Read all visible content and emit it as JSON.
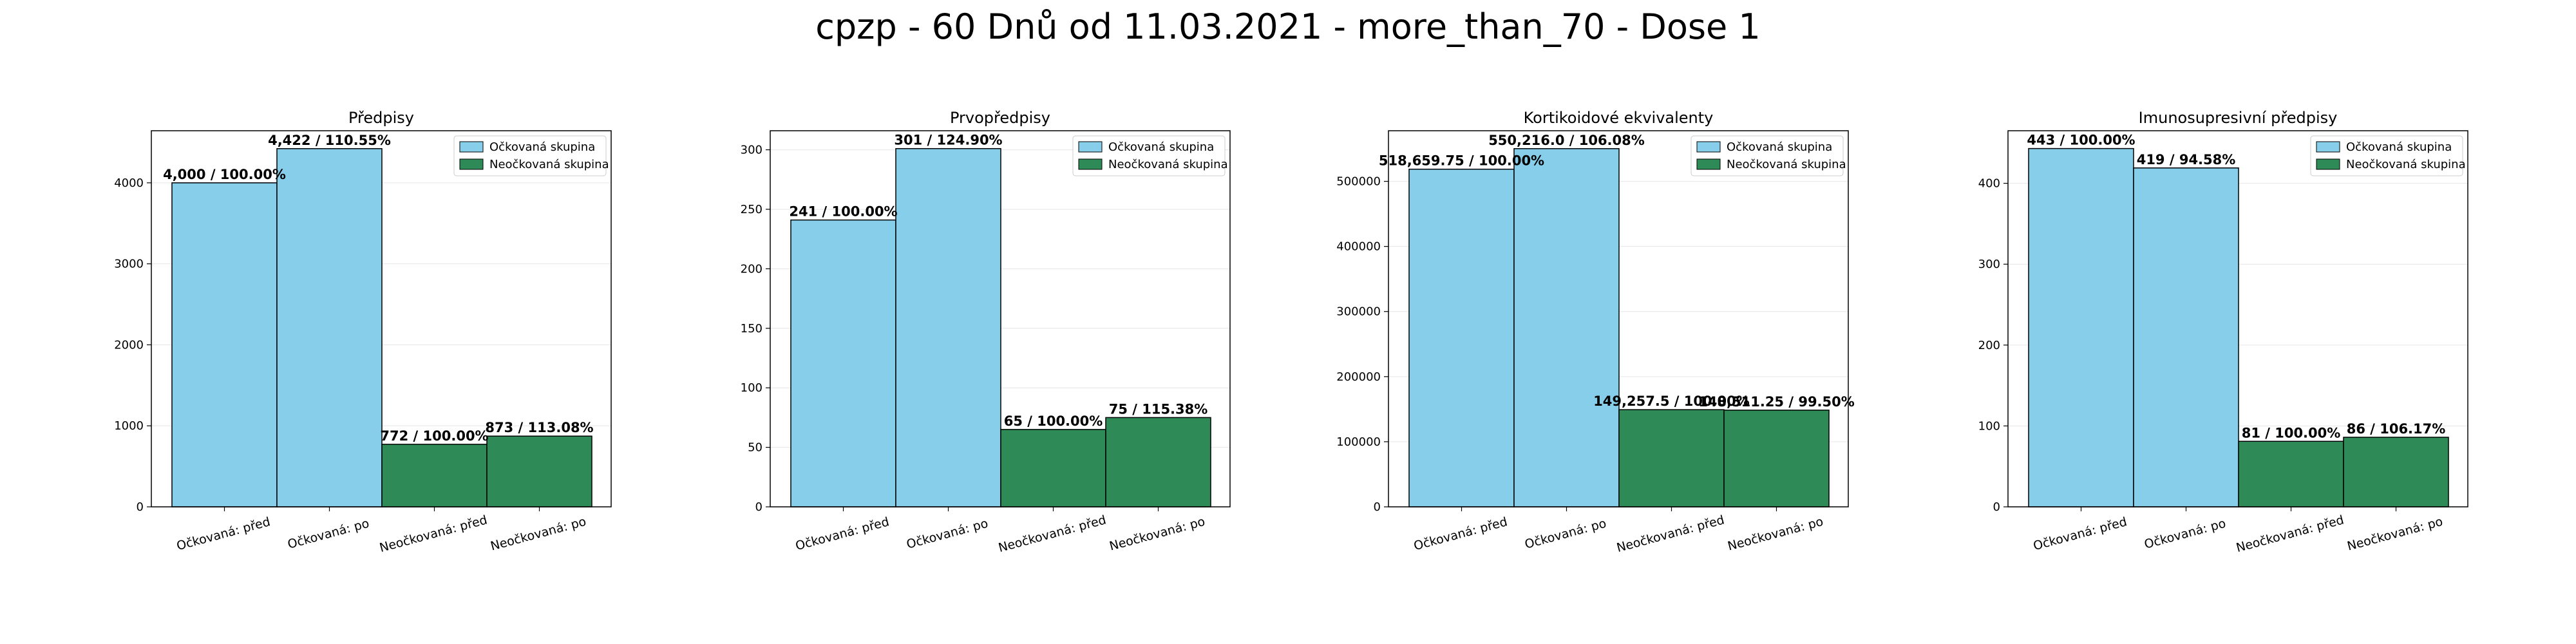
{
  "figure": {
    "title": "cpzp - 60 Dnů od 11.03.2021 - more_than_70 - Dose 1"
  },
  "colors": {
    "vaccinated": "#87ceeb",
    "unvaccinated": "#2e8b57",
    "edge": "#000000",
    "grid": "#e6e6e6"
  },
  "chart_data": [
    {
      "type": "bar",
      "title": "Předpisy",
      "categories": [
        "Očkovaná: před",
        "Očkovaná: po",
        "Neočkovaná: před",
        "Neočkovaná: po"
      ],
      "values": [
        4000,
        4422,
        772,
        873
      ],
      "data_labels": [
        "4,000 / 100.00%",
        "4,422 / 110.55%",
        "772 / 100.00%",
        "873 / 113.08%"
      ],
      "series": [
        {
          "name": "Očkovaná skupina",
          "categories": [
            "Očkovaná: před",
            "Očkovaná: po"
          ]
        },
        {
          "name": "Neočkovaná skupina",
          "categories": [
            "Neočkovaná: před",
            "Neočkovaná: po"
          ]
        }
      ],
      "ylim": [
        0,
        4643
      ],
      "yticks": [
        0,
        1000,
        2000,
        3000,
        4000
      ],
      "ytick_labels": [
        "0",
        "1000",
        "2000",
        "3000",
        "4000"
      ],
      "legend": "top-right",
      "grid": true
    },
    {
      "type": "bar",
      "title": "Prvopředpisy",
      "categories": [
        "Očkovaná: před",
        "Očkovaná: po",
        "Neočkovaná: před",
        "Neočkovaná: po"
      ],
      "values": [
        241,
        301,
        65,
        75
      ],
      "data_labels": [
        "241 / 100.00%",
        "301 / 124.90%",
        "65 / 100.00%",
        "75 / 115.38%"
      ],
      "series": [
        {
          "name": "Očkovaná skupina",
          "categories": [
            "Očkovaná: před",
            "Očkovaná: po"
          ]
        },
        {
          "name": "Neočkovaná skupina",
          "categories": [
            "Neočkovaná: před",
            "Neočkovaná: po"
          ]
        }
      ],
      "ylim": [
        0,
        316
      ],
      "yticks": [
        0,
        50,
        100,
        150,
        200,
        250,
        300
      ],
      "ytick_labels": [
        "0",
        "50",
        "100",
        "150",
        "200",
        "250",
        "300"
      ],
      "legend": "top-right",
      "grid": true
    },
    {
      "type": "bar",
      "title": "Kortikoidové ekvivalenty",
      "categories": [
        "Očkovaná: před",
        "Očkovaná: po",
        "Neočkovaná: před",
        "Neočkovaná: po"
      ],
      "values": [
        518659.75,
        550216.0,
        149257.5,
        148511.25
      ],
      "data_labels": [
        "518,659.75 / 100.00%",
        "550,216.0 / 106.08%",
        "149,257.5 / 100.00%",
        "148,511.25 / 99.50%"
      ],
      "series": [
        {
          "name": "Očkovaná skupina",
          "categories": [
            "Očkovaná: před",
            "Očkovaná: po"
          ]
        },
        {
          "name": "Neočkovaná skupina",
          "categories": [
            "Neočkovaná: před",
            "Neočkovaná: po"
          ]
        }
      ],
      "ylim": [
        0,
        577727
      ],
      "yticks": [
        0,
        100000,
        200000,
        300000,
        400000,
        500000
      ],
      "ytick_labels": [
        "0",
        "100000",
        "200000",
        "300000",
        "400000",
        "500000"
      ],
      "legend": "top-right",
      "grid": true
    },
    {
      "type": "bar",
      "title": "Imunosupresivní předpisy",
      "categories": [
        "Očkovaná: před",
        "Očkovaná: po",
        "Neočkovaná: před",
        "Neočkovaná: po"
      ],
      "values": [
        443,
        419,
        81,
        86
      ],
      "data_labels": [
        "443 / 100.00%",
        "419 / 94.58%",
        "81 / 100.00%",
        "86 / 106.17%"
      ],
      "series": [
        {
          "name": "Očkovaná skupina",
          "categories": [
            "Očkovaná: před",
            "Očkovaná: po"
          ]
        },
        {
          "name": "Neočkovaná skupina",
          "categories": [
            "Neočkovaná: před",
            "Neočkovaná: po"
          ]
        }
      ],
      "ylim": [
        0,
        465
      ],
      "yticks": [
        0,
        100,
        200,
        300,
        400
      ],
      "ytick_labels": [
        "0",
        "100",
        "200",
        "300",
        "400"
      ],
      "legend": "top-right",
      "grid": true
    }
  ]
}
